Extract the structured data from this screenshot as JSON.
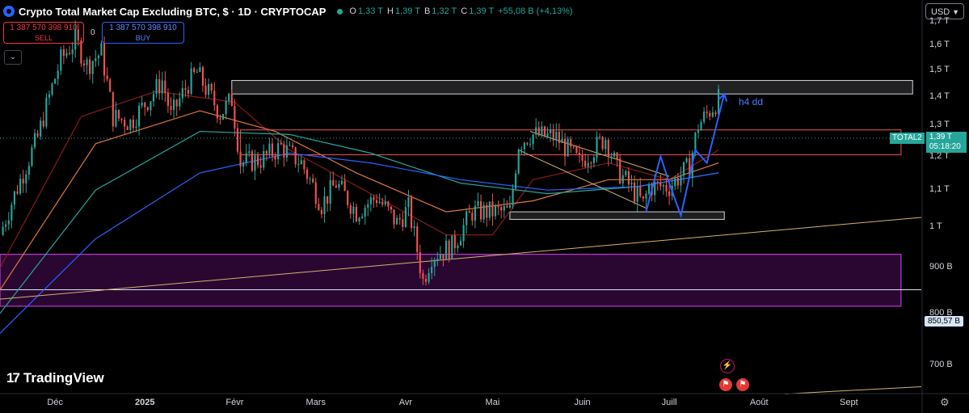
{
  "header": {
    "title": "Crypto Total Market Cap Excluding BTC, $ · 1D · CRYPTOCAP",
    "ohlc": [
      {
        "k": "O",
        "v": "1,33 T"
      },
      {
        "k": "H",
        "v": "1,39 T"
      },
      {
        "k": "B",
        "v": "1,32 T"
      },
      {
        "k": "C",
        "v": "1,39 T"
      }
    ],
    "change": "+55,08 B (+4,13%)"
  },
  "trade": {
    "sell_price": "1 387 570 398 910",
    "sell_label": "SELL",
    "spread": "0",
    "buy_price": "1 387 570 398 910",
    "buy_label": "BUY"
  },
  "currency": "USD",
  "price_tag": {
    "symbol": "TOTAL2",
    "price": "1,39 T",
    "countdown": "05:18:20"
  },
  "level_tag": "850,57 B",
  "annotation": "h4 dd",
  "brand": "TradingView",
  "colors": {
    "up": "#26a69a",
    "down": "#ef5350",
    "accent": "#2962ff",
    "zone": "#e040fb"
  },
  "chart_data": {
    "type": "candlestick",
    "y_scale": "log",
    "y_range": [
      660,
      1760
    ],
    "y_ticks": [
      {
        "label": "1,7 T",
        "v": 1700
      },
      {
        "label": "1,6 T",
        "v": 1600
      },
      {
        "label": "1,5 T",
        "v": 1500
      },
      {
        "label": "1,4 T",
        "v": 1400
      },
      {
        "label": "1,3 T",
        "v": 1300
      },
      {
        "label": "1,2 T",
        "v": 1200
      },
      {
        "label": "1,1 T",
        "v": 1100
      },
      {
        "label": "1 T",
        "v": 1000
      },
      {
        "label": "900 B",
        "v": 900
      },
      {
        "label": "800 B",
        "v": 800
      },
      {
        "label": "700 B",
        "v": 700
      }
    ],
    "x_ticks": [
      {
        "label": "Déc",
        "date": "2024-12-01",
        "bold": false
      },
      {
        "label": "2025",
        "date": "2025-01-01",
        "bold": true
      },
      {
        "label": "Févr",
        "date": "2025-02-01",
        "bold": false
      },
      {
        "label": "Mars",
        "date": "2025-03-01",
        "bold": false
      },
      {
        "label": "Avr",
        "date": "2025-04-01",
        "bold": false
      },
      {
        "label": "Mai",
        "date": "2025-05-01",
        "bold": false
      },
      {
        "label": "Juin",
        "date": "2025-06-01",
        "bold": false
      },
      {
        "label": "Juill",
        "date": "2025-07-01",
        "bold": false
      },
      {
        "label": "Août",
        "date": "2025-08-01",
        "bold": false
      },
      {
        "label": "Sept",
        "date": "2025-09-01",
        "bold": false
      }
    ],
    "x_range": [
      "2024-11-12",
      "2025-09-26"
    ],
    "close_path": [
      [
        "2024-11-12",
        980
      ],
      [
        "2024-11-20",
        1150
      ],
      [
        "2024-11-25",
        1260
      ],
      [
        "2024-12-03",
        1540
      ],
      [
        "2024-12-08",
        1620
      ],
      [
        "2024-12-12",
        1520
      ],
      [
        "2024-12-17",
        1570
      ],
      [
        "2024-12-21",
        1330
      ],
      [
        "2024-12-27",
        1310
      ],
      [
        "2025-01-03",
        1400
      ],
      [
        "2025-01-07",
        1460
      ],
      [
        "2025-01-10",
        1330
      ],
      [
        "2025-01-16",
        1450
      ],
      [
        "2025-01-19",
        1490
      ],
      [
        "2025-01-22",
        1430
      ],
      [
        "2025-01-27",
        1340
      ],
      [
        "2025-01-31",
        1390
      ],
      [
        "2025-02-03",
        1180
      ],
      [
        "2025-02-10",
        1190
      ],
      [
        "2025-02-17",
        1230
      ],
      [
        "2025-02-24",
        1180
      ],
      [
        "2025-03-03",
        1060
      ],
      [
        "2025-03-08",
        1120
      ],
      [
        "2025-03-15",
        1040
      ],
      [
        "2025-03-22",
        1080
      ],
      [
        "2025-03-29",
        1010
      ],
      [
        "2025-04-02",
        1050
      ],
      [
        "2025-04-07",
        870
      ],
      [
        "2025-04-10",
        930
      ],
      [
        "2025-04-17",
        950
      ],
      [
        "2025-04-24",
        1040
      ],
      [
        "2025-05-01",
        1040
      ],
      [
        "2025-05-07",
        1040
      ],
      [
        "2025-05-10",
        1240
      ],
      [
        "2025-05-14",
        1270
      ],
      [
        "2025-05-23",
        1260
      ],
      [
        "2025-05-31",
        1180
      ],
      [
        "2025-06-09",
        1260
      ],
      [
        "2025-06-13",
        1160
      ],
      [
        "2025-06-22",
        1060
      ],
      [
        "2025-06-24",
        1110
      ],
      [
        "2025-07-01",
        1110
      ],
      [
        "2025-07-08",
        1170
      ],
      [
        "2025-07-11",
        1300
      ],
      [
        "2025-07-18",
        1390
      ]
    ],
    "series": [
      {
        "name": "",
        "color": "#8b1a1a",
        "points": [
          [
            "2024-11-12",
            900
          ],
          [
            "2024-12-10",
            1330
          ],
          [
            "2025-01-05",
            1420
          ],
          [
            "2025-02-01",
            1380
          ],
          [
            "2025-02-20",
            1220
          ],
          [
            "2025-03-20",
            1090
          ],
          [
            "2025-04-15",
            980
          ],
          [
            "2025-05-01",
            980
          ],
          [
            "2025-05-15",
            1130
          ],
          [
            "2025-06-10",
            1180
          ],
          [
            "2025-07-01",
            1130
          ],
          [
            "2025-07-18",
            1220
          ]
        ]
      },
      {
        "name": "",
        "color": "#e0783c",
        "points": [
          [
            "2024-11-12",
            850
          ],
          [
            "2024-12-15",
            1240
          ],
          [
            "2025-01-20",
            1350
          ],
          [
            "2025-02-15",
            1280
          ],
          [
            "2025-03-15",
            1150
          ],
          [
            "2025-04-15",
            1040
          ],
          [
            "2025-05-15",
            1070
          ],
          [
            "2025-06-10",
            1130
          ],
          [
            "2025-07-01",
            1130
          ],
          [
            "2025-07-18",
            1180
          ]
        ]
      },
      {
        "name": "",
        "color": "#26a69a",
        "points": [
          [
            "2024-11-12",
            800
          ],
          [
            "2024-12-15",
            1100
          ],
          [
            "2025-01-20",
            1280
          ],
          [
            "2025-02-20",
            1270
          ],
          [
            "2025-03-20",
            1210
          ],
          [
            "2025-04-20",
            1120
          ],
          [
            "2025-05-20",
            1090
          ],
          [
            "2025-06-20",
            1110
          ],
          [
            "2025-07-18",
            1150
          ]
        ]
      },
      {
        "name": "",
        "color": "#2962ff",
        "points": [
          [
            "2024-11-12",
            760
          ],
          [
            "2024-12-15",
            970
          ],
          [
            "2025-01-20",
            1150
          ],
          [
            "2025-02-20",
            1210
          ],
          [
            "2025-03-20",
            1180
          ],
          [
            "2025-04-20",
            1130
          ],
          [
            "2025-05-20",
            1100
          ],
          [
            "2025-06-20",
            1110
          ],
          [
            "2025-07-18",
            1150
          ]
        ]
      }
    ],
    "zones": [
      {
        "name": "resistance-zone",
        "from": "2025-01-31",
        "to": "2025-09-23",
        "top": 1460,
        "bottom": 1410,
        "fill": "rgba(60,60,60,0.55)",
        "stroke": "#d1d4dc"
      },
      {
        "name": "mid-zone",
        "from": "2025-02-03",
        "to": "2025-09-19",
        "top": 1285,
        "bottom": 1205,
        "fill": "rgba(0,0,0,0)",
        "stroke": "#ef5350"
      },
      {
        "name": "support-zone",
        "from": "2025-05-07",
        "to": "2025-07-20",
        "top": 1040,
        "bottom": 1020,
        "fill": "rgba(200,200,200,0.15)",
        "stroke": "#d1d4dc"
      },
      {
        "name": "demand-zone",
        "from": "2024-11-12",
        "to": "2025-09-19",
        "top": 932,
        "bottom": 815,
        "fill": "rgba(120,20,140,0.35)",
        "stroke": "#e040fb"
      }
    ],
    "hline": {
      "value": 850.57,
      "color": "#d6e6f5"
    },
    "trendlines": [
      {
        "name": "long-trendline",
        "color": "#d4b26a",
        "from": [
          "2024-11-12",
          830
        ],
        "to": [
          "2025-09-26",
          1025
        ]
      },
      {
        "name": "channel-top",
        "color": "#d4b26a",
        "from": [
          "2025-05-14",
          1280
        ],
        "to": [
          "2025-07-01",
          1140
        ]
      },
      {
        "name": "channel-bottom",
        "color": "#d4b26a",
        "from": [
          "2025-05-10",
          1220
        ],
        "to": [
          "2025-06-23",
          1050
        ]
      },
      {
        "name": "lower-trendline",
        "color": "#d4b26a",
        "from": [
          "2025-08-10",
          650
        ],
        "to": [
          "2025-09-26",
          662
        ]
      }
    ],
    "projection": {
      "color": "#2962ff",
      "points": [
        [
          "2025-06-23",
          1040
        ],
        [
          "2025-06-28",
          1200
        ],
        [
          "2025-07-01",
          1120
        ],
        [
          "2025-07-05",
          1030
        ],
        [
          "2025-07-10",
          1220
        ],
        [
          "2025-07-14",
          1180
        ],
        [
          "2025-07-20",
          1410
        ]
      ]
    }
  }
}
